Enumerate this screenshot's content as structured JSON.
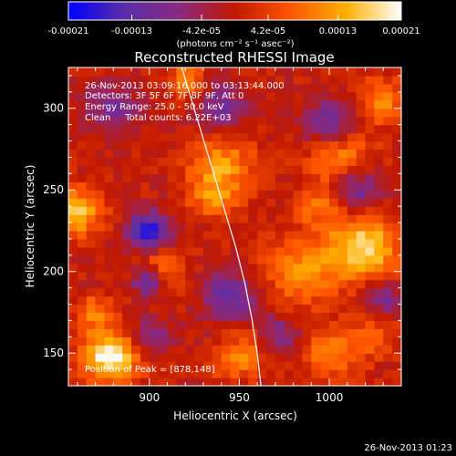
{
  "chart_data": {
    "type": "heatmap",
    "title": "Reconstructed RHESSI Image",
    "xlabel": "Heliocentric X (arcsec)",
    "ylabel": "Heliocentric Y (arcsec)",
    "xlim": [
      855,
      1040
    ],
    "ylim": [
      130,
      325
    ],
    "x_ticks": [
      900,
      950,
      1000
    ],
    "x_tick_labels": [
      "900",
      "950",
      "1000"
    ],
    "y_ticks": [
      150,
      200,
      250,
      300
    ],
    "y_tick_labels": [
      "150",
      "200",
      "250",
      "300"
    ],
    "colorbar": {
      "range": [
        -0.00021,
        0.00021
      ],
      "tick_values": [
        -0.00021,
        -0.00013,
        -4.2e-05,
        4.2e-05,
        0.00013,
        0.00021
      ],
      "tick_labels": [
        "-0.00021",
        "-0.00013",
        "-4.2e-05",
        "4.2e-05",
        "0.00013",
        "0.00021"
      ],
      "label": "(photons cm⁻² s⁻¹ asec⁻²)",
      "colors": [
        "#0000ff",
        "#5a2ea8",
        "#8a2a80",
        "#c01800",
        "#ff5500",
        "#ffb000",
        "#ffffff"
      ]
    },
    "annotations": [
      "26-Nov-2013 03:09:16.000 to 03:13:44.000",
      "Detectors: 3F 5F 6F 7F 8F 9F, Att 0",
      "Energy Range: 25.0 - 50.0 keV",
      "Clean     Total counts: 6.22E+03"
    ],
    "peak_label": "Position of Peak = [878,148]",
    "peak_position": [
      878,
      148
    ],
    "limb_curve_x": [
      918,
      924,
      930,
      936,
      942,
      948,
      953,
      957,
      960,
      962
    ],
    "limb_curve_y": [
      325,
      303,
      281,
      259,
      237,
      215,
      193,
      171,
      149,
      130
    ],
    "sources": [
      {
        "x": 878,
        "y": 148,
        "intensity": 0.00021,
        "radius": 11
      },
      {
        "x": 860,
        "y": 237,
        "intensity": 0.00016,
        "radius": 10
      },
      {
        "x": 1020,
        "y": 215,
        "intensity": 0.00017,
        "radius": 14
      },
      {
        "x": 905,
        "y": 200,
        "intensity": 0.00012,
        "radius": 10
      },
      {
        "x": 940,
        "y": 265,
        "intensity": 0.00012,
        "radius": 13
      },
      {
        "x": 985,
        "y": 200,
        "intensity": 0.00011,
        "radius": 15
      },
      {
        "x": 1005,
        "y": 272,
        "intensity": 0.00011,
        "radius": 12
      },
      {
        "x": 960,
        "y": 155,
        "intensity": 0.0001,
        "radius": 10
      },
      {
        "x": 1000,
        "y": 150,
        "intensity": 9e-05,
        "radius": 12
      },
      {
        "x": 1030,
        "y": 305,
        "intensity": 0.0001,
        "radius": 10
      },
      {
        "x": 920,
        "y": 318,
        "intensity": 0.00011,
        "radius": 7
      },
      {
        "x": 935,
        "y": 245,
        "intensity": 9e-05,
        "radius": 9
      },
      {
        "x": 870,
        "y": 175,
        "intensity": 9e-05,
        "radius": 8
      },
      {
        "x": 995,
        "y": 240,
        "intensity": 8e-05,
        "radius": 10
      },
      {
        "x": 945,
        "y": 145,
        "intensity": 8e-05,
        "radius": 8
      },
      {
        "x": 1025,
        "y": 160,
        "intensity": 7e-05,
        "radius": 9
      },
      {
        "x": 900,
        "y": 225,
        "intensity": -0.0002,
        "radius": 8
      },
      {
        "x": 900,
        "y": 195,
        "intensity": -0.00018,
        "radius": 7
      },
      {
        "x": 945,
        "y": 185,
        "intensity": -0.00013,
        "radius": 10
      },
      {
        "x": 970,
        "y": 160,
        "intensity": -0.00014,
        "radius": 9
      },
      {
        "x": 1000,
        "y": 290,
        "intensity": -0.00012,
        "radius": 10
      },
      {
        "x": 1015,
        "y": 250,
        "intensity": -0.00012,
        "radius": 9
      },
      {
        "x": 880,
        "y": 300,
        "intensity": -0.0001,
        "radius": 10
      },
      {
        "x": 940,
        "y": 300,
        "intensity": -0.0001,
        "radius": 10
      },
      {
        "x": 900,
        "y": 160,
        "intensity": -9e-05,
        "radius": 8
      },
      {
        "x": 1030,
        "y": 185,
        "intensity": -9e-05,
        "radius": 8
      }
    ]
  },
  "footer": {
    "timestamp": "26-Nov-2013 01:23"
  }
}
